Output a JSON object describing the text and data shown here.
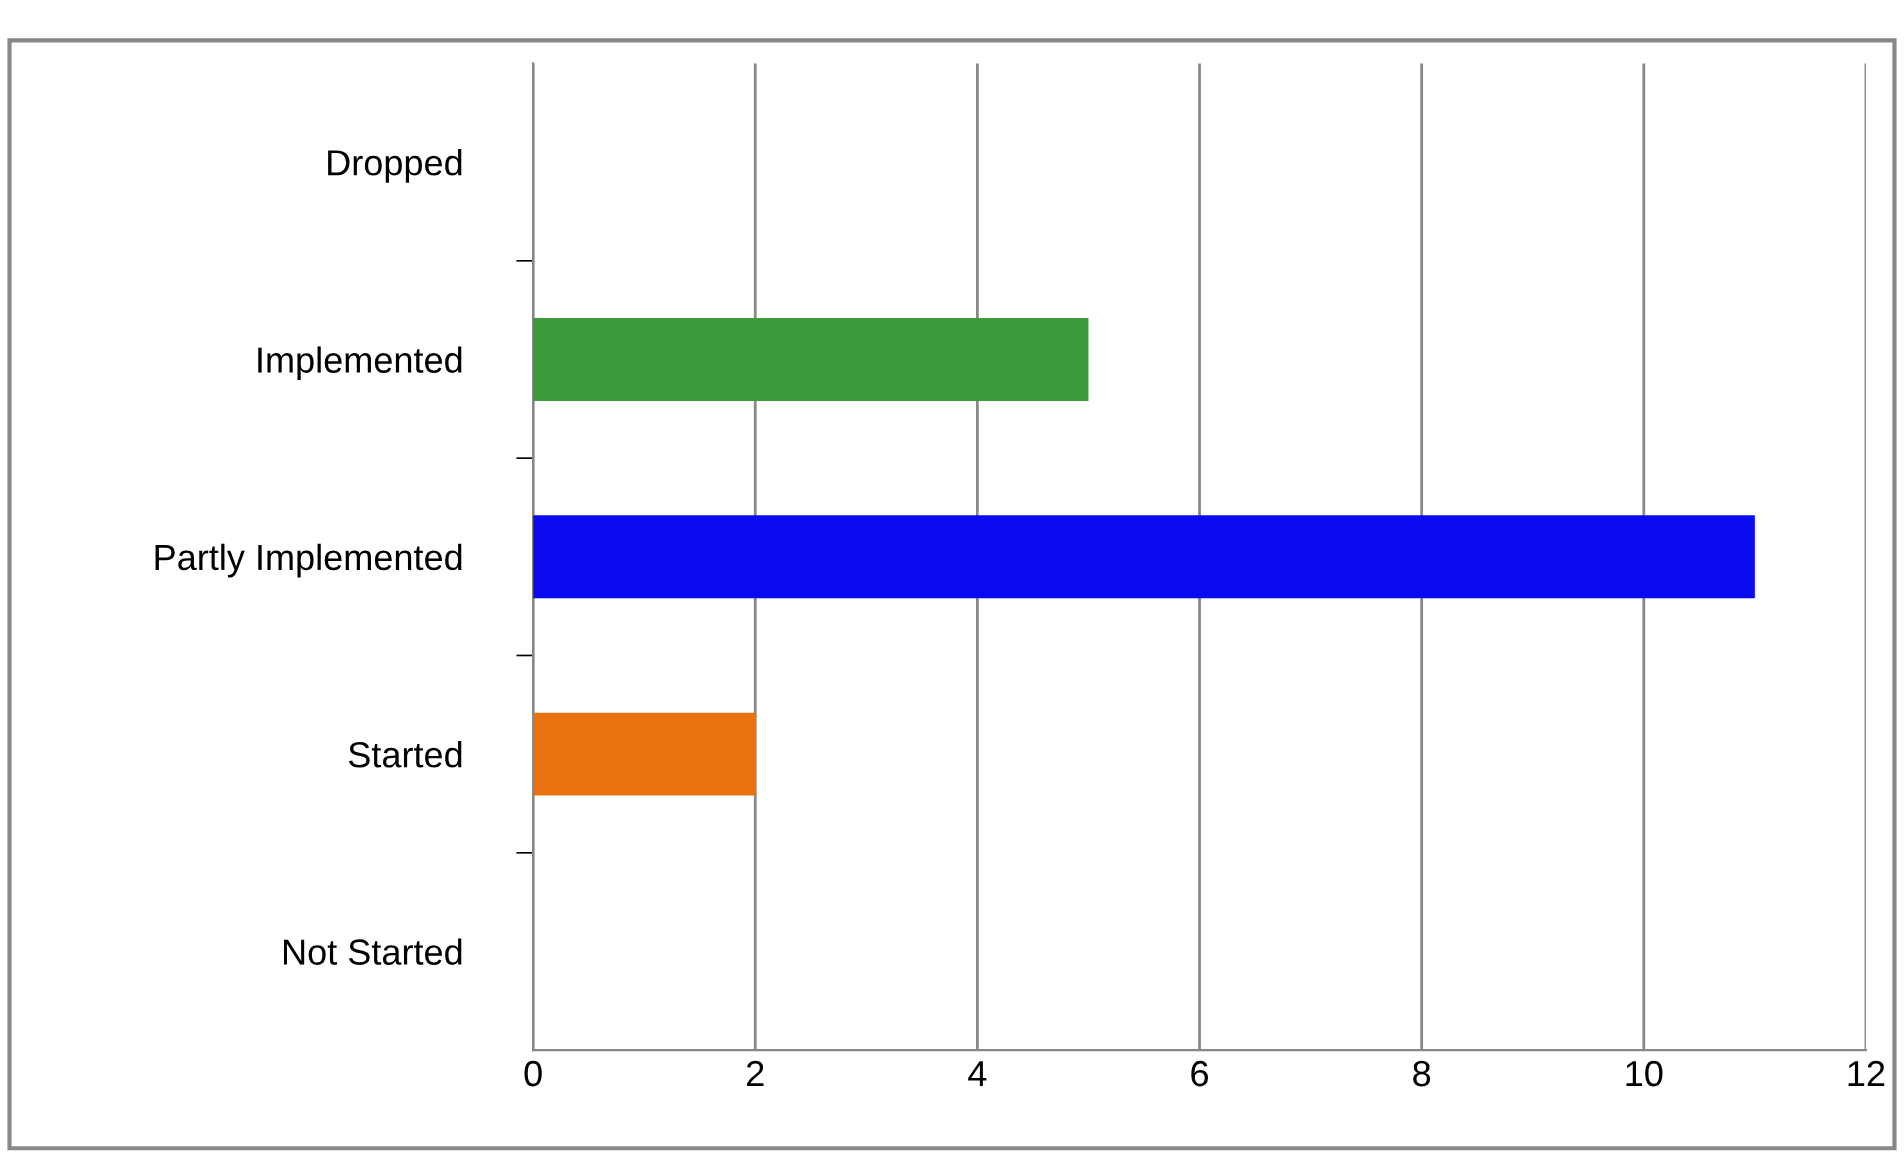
{
  "chart_data": {
    "type": "bar",
    "orientation": "horizontal",
    "categories": [
      "Dropped",
      "Implemented",
      "Partly Implemented",
      "Started",
      "Not Started"
    ],
    "values": [
      0,
      5,
      11,
      2,
      0
    ],
    "colors": [
      "#808080",
      "#3c9c3c",
      "#0a0af0",
      "#ea720e",
      "#808080"
    ],
    "xlim": [
      0,
      12
    ],
    "xticks": [
      0,
      2,
      4,
      6,
      8,
      10,
      12
    ],
    "grid": "x",
    "legend": false
  }
}
